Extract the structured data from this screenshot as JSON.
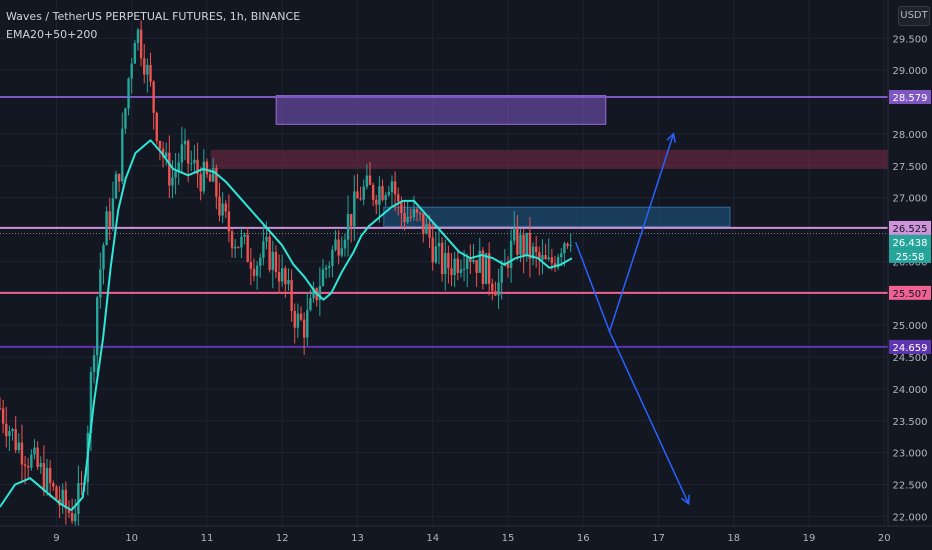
{
  "header": {
    "title": "Waves / TetherUS PERPETUAL FUTURES, 1h, BINANCE",
    "indicator": "EMA20+50+200",
    "currency_badge": "USDT"
  },
  "price_axis": {
    "ticks": [
      "29.500",
      "29.000",
      "28.000",
      "27.500",
      "27.000",
      "26.000",
      "25.000",
      "24.500",
      "24.000",
      "23.500",
      "23.000",
      "22.500",
      "22.000"
    ],
    "tick_values": [
      29.5,
      29.0,
      28.0,
      27.5,
      27.0,
      26.0,
      25.0,
      24.5,
      24.0,
      23.5,
      23.0,
      22.5,
      22.0
    ],
    "labels": [
      {
        "text": "28.579",
        "value": 28.579,
        "color": "#7e57c2",
        "text_color": "#ffffff"
      },
      {
        "text": "26.525",
        "value": 26.525,
        "color": "#ce93d8",
        "text_color": "#131722"
      },
      {
        "text": "26.438",
        "value": 26.438,
        "color": "#26a69a",
        "text_color": "#ffffff"
      },
      {
        "text": "25:58",
        "value": 26.25,
        "color": "#26a69a",
        "text_color": "#ffffff"
      },
      {
        "text": "25.507",
        "value": 25.507,
        "color": "#f06292",
        "text_color": "#131722"
      },
      {
        "text": "24.659",
        "value": 24.659,
        "color": "#5e35b1",
        "text_color": "#ffffff"
      }
    ]
  },
  "time_axis": {
    "ticks": [
      "9",
      "10",
      "11",
      "12",
      "13",
      "14",
      "15",
      "16",
      "17",
      "18",
      "19",
      "20"
    ],
    "tick_values": [
      9,
      10,
      11,
      12,
      13,
      14,
      15,
      16,
      17,
      18,
      19,
      20
    ]
  },
  "chart_data": {
    "type": "candlestick",
    "title": "Waves / TetherUS PERPETUAL FUTURES, 1h, BINANCE",
    "x_unit": "day",
    "xlim": [
      8.25,
      20.05
    ],
    "ylim": [
      21.85,
      30.1
    ],
    "colors": {
      "up": "#26a69a",
      "down": "#ef5350",
      "ema": "#2ee6d6",
      "grid": "#1f2330"
    },
    "horizontal_lines": [
      {
        "value": 28.579,
        "color": "#7e57c2",
        "style": "solid"
      },
      {
        "value": 26.525,
        "color": "#ce93d8",
        "style": "solid"
      },
      {
        "value": 26.438,
        "color": "#787b86",
        "style": "dotted"
      },
      {
        "value": 25.507,
        "color": "#f06292",
        "style": "solid"
      },
      {
        "value": 24.659,
        "color": "#5e35b1",
        "style": "solid"
      }
    ],
    "zones": [
      {
        "x1": 11.92,
        "x2": 16.3,
        "y1": 28.15,
        "y2": 28.6,
        "fill": "#7e57c2",
        "opacity": 0.55,
        "stroke": "#9c6bd6"
      },
      {
        "x1": 11.05,
        "x2": 20.05,
        "y1": 27.45,
        "y2": 27.75,
        "fill": "#8e2e4e",
        "opacity": 0.45,
        "stroke": ""
      },
      {
        "x1": 13.35,
        "x2": 17.95,
        "y1": 26.55,
        "y2": 26.85,
        "fill": "#1c4a6e",
        "opacity": 0.75,
        "stroke": "#2f6f9e"
      }
    ],
    "ema": [
      [
        8.25,
        22.15
      ],
      [
        8.45,
        22.5
      ],
      [
        8.65,
        22.6
      ],
      [
        8.85,
        22.4
      ],
      [
        9.05,
        22.2
      ],
      [
        9.2,
        22.1
      ],
      [
        9.35,
        22.3
      ],
      [
        9.5,
        23.8
      ],
      [
        9.62,
        24.8
      ],
      [
        9.72,
        25.9
      ],
      [
        9.82,
        26.8
      ],
      [
        9.92,
        27.3
      ],
      [
        10.05,
        27.7
      ],
      [
        10.25,
        27.9
      ],
      [
        10.4,
        27.7
      ],
      [
        10.55,
        27.45
      ],
      [
        10.75,
        27.35
      ],
      [
        10.95,
        27.45
      ],
      [
        11.1,
        27.4
      ],
      [
        11.25,
        27.25
      ],
      [
        11.4,
        27.05
      ],
      [
        11.55,
        26.85
      ],
      [
        11.7,
        26.65
      ],
      [
        11.85,
        26.45
      ],
      [
        12.0,
        26.25
      ],
      [
        12.15,
        25.95
      ],
      [
        12.3,
        25.75
      ],
      [
        12.45,
        25.5
      ],
      [
        12.55,
        25.4
      ],
      [
        12.65,
        25.5
      ],
      [
        12.8,
        25.85
      ],
      [
        12.95,
        26.15
      ],
      [
        13.05,
        26.4
      ],
      [
        13.15,
        26.55
      ],
      [
        13.3,
        26.7
      ],
      [
        13.45,
        26.85
      ],
      [
        13.6,
        26.95
      ],
      [
        13.75,
        26.95
      ],
      [
        13.9,
        26.75
      ],
      [
        14.05,
        26.55
      ],
      [
        14.2,
        26.35
      ],
      [
        14.35,
        26.15
      ],
      [
        14.5,
        26.05
      ],
      [
        14.65,
        26.1
      ],
      [
        14.8,
        26.05
      ],
      [
        14.95,
        25.95
      ],
      [
        15.1,
        26.05
      ],
      [
        15.25,
        26.1
      ],
      [
        15.4,
        26.05
      ],
      [
        15.55,
        25.9
      ],
      [
        15.7,
        25.95
      ],
      [
        15.85,
        26.05
      ]
    ],
    "candle_trend": [
      [
        8.25,
        23.7
      ],
      [
        8.45,
        23.2
      ],
      [
        8.65,
        22.9
      ],
      [
        8.85,
        22.6
      ],
      [
        9.05,
        22.2
      ],
      [
        9.2,
        22.05
      ],
      [
        9.35,
        22.4
      ],
      [
        9.45,
        24.0
      ],
      [
        9.55,
        25.6
      ],
      [
        9.65,
        26.5
      ],
      [
        9.75,
        26.9
      ],
      [
        9.85,
        27.6
      ],
      [
        9.95,
        28.8
      ],
      [
        10.05,
        29.7
      ],
      [
        10.15,
        29.3
      ],
      [
        10.25,
        28.7
      ],
      [
        10.35,
        28.0
      ],
      [
        10.45,
        27.5
      ],
      [
        10.55,
        27.3
      ],
      [
        10.65,
        27.7
      ],
      [
        10.8,
        27.5
      ],
      [
        10.95,
        27.3
      ],
      [
        11.1,
        27.2
      ],
      [
        11.2,
        26.7
      ],
      [
        11.35,
        26.4
      ],
      [
        11.5,
        26.2
      ],
      [
        11.65,
        26.0
      ],
      [
        11.8,
        26.15
      ],
      [
        11.95,
        25.9
      ],
      [
        12.1,
        25.4
      ],
      [
        12.2,
        25.05
      ],
      [
        12.3,
        25.0
      ],
      [
        12.4,
        25.3
      ],
      [
        12.5,
        25.7
      ],
      [
        12.65,
        26.1
      ],
      [
        12.8,
        26.5
      ],
      [
        12.95,
        26.8
      ],
      [
        13.05,
        27.1
      ],
      [
        13.2,
        27.1
      ],
      [
        13.35,
        27.2
      ],
      [
        13.45,
        27.35
      ],
      [
        13.55,
        26.8
      ],
      [
        13.7,
        26.7
      ],
      [
        13.85,
        26.6
      ],
      [
        13.95,
        26.4
      ],
      [
        14.05,
        26.1
      ],
      [
        14.15,
        25.9
      ],
      [
        14.3,
        26.0
      ],
      [
        14.45,
        26.2
      ],
      [
        14.6,
        26.0
      ],
      [
        14.75,
        25.8
      ],
      [
        14.9,
        25.6
      ],
      [
        15.0,
        26.1
      ],
      [
        15.1,
        26.3
      ],
      [
        15.25,
        26.2
      ],
      [
        15.4,
        26.0
      ],
      [
        15.55,
        25.9
      ],
      [
        15.7,
        26.3
      ],
      [
        15.85,
        26.5
      ]
    ],
    "projection": [
      {
        "points": [
          [
            15.9,
            26.3
          ],
          [
            16.35,
            24.9
          ],
          [
            17.2,
            28.0
          ]
        ],
        "color": "#2962ff"
      },
      {
        "points": [
          [
            16.35,
            24.9
          ],
          [
            17.4,
            22.2
          ]
        ],
        "color": "#2962ff"
      }
    ]
  }
}
